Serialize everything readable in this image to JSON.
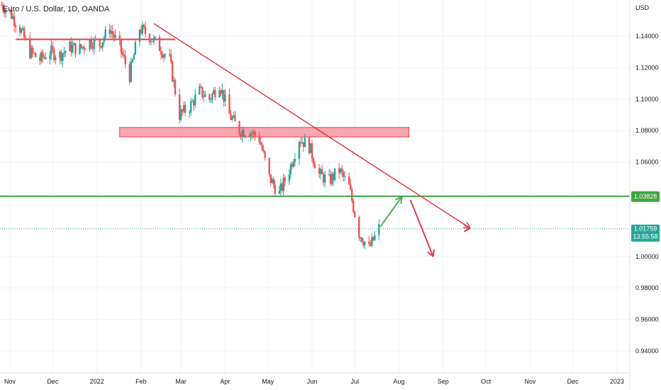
{
  "title": "Euro / U.S. Dollar, 1D, OANDA",
  "currency_label": "USD",
  "colors": {
    "up": "#26a69a",
    "down": "#ef5350",
    "trendline": "#e8394a",
    "zone_fill": "#f58a92",
    "support": "#3fa63f",
    "arrow_up": "#4caf50",
    "arrow_down": "#e8394a",
    "price_badge": "#26a69a",
    "support_badge": "#3fa63f"
  },
  "chart_data": {
    "type": "candlestick",
    "x_axis_labels": [
      "Nov",
      "Dec",
      "2022",
      "Feb",
      "Mar",
      "Apr",
      "May",
      "Jun",
      "Jul",
      "Aug",
      "Sep",
      "Oct",
      "Nov",
      "Dec",
      "2023"
    ],
    "y_ticks": [
      "1.14000",
      "1.12000",
      "1.10000",
      "1.08000",
      "1.06000",
      "1.00000",
      "0.98000",
      "0.96000",
      "0.94000"
    ],
    "y_tick_values": [
      1.14,
      1.12,
      1.1,
      1.08,
      1.06,
      1.0,
      0.98,
      0.96,
      0.94
    ],
    "ylim": [
      0.926,
      1.163
    ],
    "date_start": "2021-10-25",
    "date_end": "2023-01-10",
    "candle_dates": [
      "2021-10-26",
      "2021-11-01",
      "2021-11-08",
      "2021-11-15",
      "2021-11-22",
      "2021-11-29",
      "2021-12-06",
      "2021-12-13",
      "2021-12-20",
      "2021-12-27",
      "2022-01-03",
      "2022-01-10",
      "2022-01-17",
      "2022-01-24",
      "2022-01-31",
      "2022-02-07",
      "2022-02-14",
      "2022-02-21",
      "2022-02-28",
      "2022-03-07",
      "2022-03-14",
      "2022-03-21",
      "2022-03-28",
      "2022-04-04",
      "2022-04-11",
      "2022-04-18",
      "2022-04-25",
      "2022-05-02",
      "2022-05-09",
      "2022-05-16",
      "2022-05-23",
      "2022-05-30",
      "2022-06-06",
      "2022-06-13",
      "2022-06-20",
      "2022-06-27",
      "2022-07-04",
      "2022-07-11",
      "2022-07-18"
    ],
    "close_values": [
      1.16,
      1.155,
      1.145,
      1.13,
      1.125,
      1.13,
      1.128,
      1.133,
      1.132,
      1.137,
      1.135,
      1.145,
      1.133,
      1.115,
      1.145,
      1.14,
      1.133,
      1.125,
      1.09,
      1.095,
      1.105,
      1.1,
      1.11,
      1.09,
      1.08,
      1.08,
      1.075,
      1.05,
      1.04,
      1.055,
      1.075,
      1.07,
      1.052,
      1.048,
      1.055,
      1.044,
      1.015,
      1.005,
      1.018
    ],
    "current_price": "1.01759",
    "countdown": "13:55:58",
    "support_level": 1.03828,
    "support_label": "1.03828",
    "resistance_zone": [
      1.076,
      1.082
    ],
    "resistance_zone_span": [
      "2022-01-17",
      "2022-08-08"
    ],
    "red_horizontal_level": 1.138,
    "red_horizontal_span": [
      "2021-11-05",
      "2022-02-25"
    ],
    "trendline": {
      "from": [
        "2022-02-10",
        1.148
      ],
      "to": [
        "2022-09-20",
        1.018
      ]
    },
    "projection_up": {
      "from": [
        "2022-07-19",
        1.019
      ],
      "to": [
        "2022-08-03",
        1.038
      ]
    },
    "projection_down": {
      "from": [
        "2022-08-09",
        1.036
      ],
      "to": [
        "2022-08-25",
        1.0
      ]
    }
  }
}
